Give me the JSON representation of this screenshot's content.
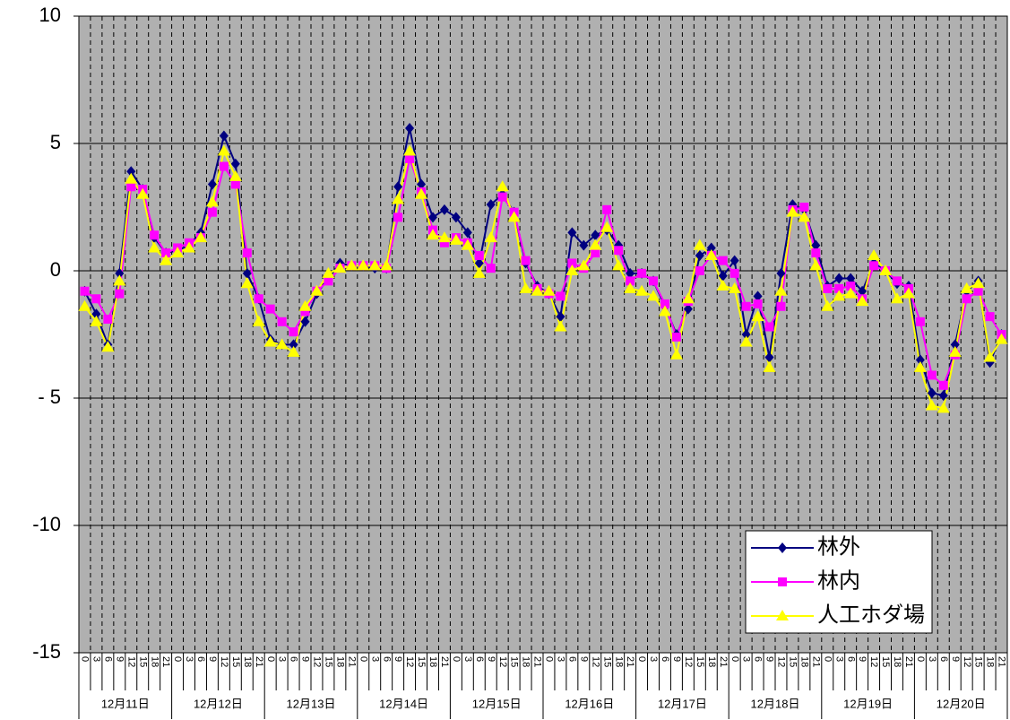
{
  "chart_data": {
    "type": "line",
    "categories": [
      "0",
      "3",
      "6",
      "9",
      "12",
      "15",
      "18",
      "21",
      "0",
      "3",
      "6",
      "9",
      "12",
      "15",
      "18",
      "21",
      "0",
      "3",
      "6",
      "9",
      "12",
      "15",
      "18",
      "21",
      "0",
      "3",
      "6",
      "9",
      "12",
      "15",
      "18",
      "21",
      "0",
      "3",
      "6",
      "9",
      "12",
      "15",
      "18",
      "21",
      "0",
      "3",
      "6",
      "9",
      "12",
      "15",
      "18",
      "21",
      "0",
      "3",
      "6",
      "9",
      "12",
      "15",
      "18",
      "21",
      "0",
      "3",
      "6",
      "9",
      "12",
      "15",
      "18",
      "21",
      "0",
      "3",
      "6",
      "9",
      "12",
      "15",
      "18",
      "21",
      "0",
      "3",
      "6",
      "9",
      "12",
      "15",
      "18",
      "21"
    ],
    "category_groups": [
      "12月11日",
      "12月12日",
      "12月13日",
      "12月14日",
      "12月15日",
      "12月16日",
      "12月17日",
      "12月18日",
      "12月19日",
      "12月20日"
    ],
    "series": [
      {
        "name": "林外",
        "color": "#000080",
        "marker": "diamond",
        "values": [
          -0.8,
          -1.7,
          -2.9,
          -0.1,
          3.9,
          3.2,
          1.3,
          0.7,
          0.8,
          1.0,
          1.5,
          3.4,
          5.3,
          4.2,
          -0.1,
          -1.1,
          -2.7,
          -2.9,
          -2.9,
          -2.0,
          -0.9,
          -0.3,
          0.3,
          0.2,
          0.2,
          0.1,
          0.1,
          3.3,
          5.6,
          3.4,
          2.1,
          2.4,
          2.1,
          1.5,
          0.3,
          2.6,
          3.0,
          2.3,
          0.3,
          -0.6,
          -0.9,
          -1.8,
          1.5,
          1.0,
          1.4,
          1.6,
          1.0,
          -0.1,
          -0.1,
          -0.4,
          -1.4,
          -2.5,
          -1.5,
          0.6,
          0.9,
          -0.2,
          0.4,
          -2.5,
          -1.0,
          -3.4,
          -0.1,
          2.6,
          2.4,
          1.0,
          -0.6,
          -0.3,
          -0.3,
          -0.8,
          0.3,
          0.0,
          -0.5,
          -0.6,
          -3.5,
          -4.8,
          -4.9,
          -2.9,
          -0.8,
          -0.4,
          -3.6,
          -2.5
        ]
      },
      {
        "name": "林内",
        "color": "#ff00ff",
        "marker": "square",
        "values": [
          -0.8,
          -1.1,
          -1.9,
          -0.9,
          3.3,
          3.2,
          1.4,
          0.7,
          0.9,
          1.1,
          1.3,
          2.3,
          4.1,
          3.4,
          0.7,
          -1.1,
          -1.5,
          -2.0,
          -2.4,
          -1.6,
          -0.8,
          -0.4,
          0.1,
          0.2,
          0.2,
          0.2,
          0.1,
          2.1,
          4.4,
          3.1,
          1.6,
          1.1,
          1.3,
          1.1,
          0.6,
          0.1,
          2.9,
          2.3,
          0.4,
          -0.7,
          -0.9,
          -1.0,
          0.3,
          0.1,
          0.7,
          2.4,
          0.8,
          -0.4,
          -0.1,
          -0.4,
          -1.3,
          -2.6,
          -1.2,
          0.0,
          0.6,
          0.4,
          -0.1,
          -1.4,
          -1.3,
          -2.2,
          -1.4,
          2.4,
          2.5,
          0.7,
          -0.7,
          -0.7,
          -0.6,
          -1.1,
          0.2,
          0.0,
          -0.4,
          -0.7,
          -2.0,
          -4.1,
          -4.5,
          -3.3,
          -1.1,
          -0.8,
          -1.8,
          -2.5
        ]
      },
      {
        "name": "人工ホダ場",
        "color": "#ffff00",
        "marker": "triangle",
        "values": [
          -1.4,
          -2.0,
          -3.0,
          -0.4,
          3.6,
          3.0,
          0.9,
          0.4,
          0.7,
          0.9,
          1.3,
          2.7,
          4.7,
          3.7,
          -0.5,
          -2.0,
          -2.8,
          -2.9,
          -3.2,
          -1.4,
          -0.8,
          -0.1,
          0.1,
          0.2,
          0.2,
          0.2,
          0.2,
          2.8,
          4.7,
          3.0,
          1.4,
          1.3,
          1.2,
          1.0,
          -0.1,
          1.3,
          3.3,
          2.1,
          -0.7,
          -0.8,
          -0.8,
          -2.2,
          0.0,
          0.2,
          1.0,
          1.7,
          0.2,
          -0.7,
          -0.8,
          -1.0,
          -1.6,
          -3.3,
          -1.1,
          1.0,
          0.6,
          -0.6,
          -0.7,
          -2.8,
          -1.8,
          -3.8,
          -0.8,
          2.3,
          2.1,
          0.2,
          -1.4,
          -1.0,
          -0.9,
          -1.2,
          0.6,
          0.0,
          -1.1,
          -0.9,
          -3.8,
          -5.3,
          -5.4,
          -3.2,
          -0.7,
          -0.5,
          -3.4,
          -2.7
        ]
      }
    ],
    "ylim": [
      -15,
      10
    ],
    "yticks": [
      -15,
      -10,
      {
        "value": -5,
        "label": "- 5"
      },
      0,
      5,
      10
    ],
    "grid": true,
    "legend": "lower right",
    "background": "#b0b0b0"
  }
}
